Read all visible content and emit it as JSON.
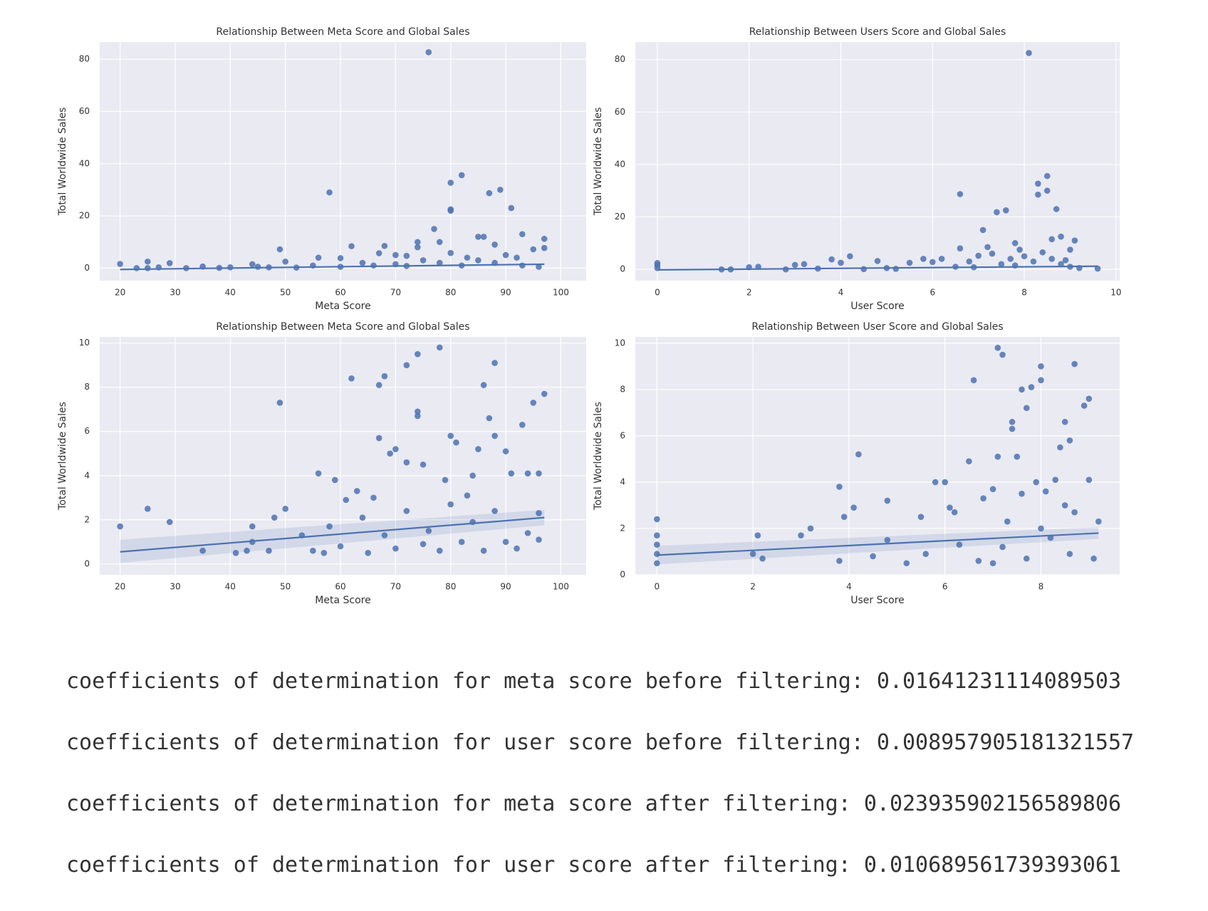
{
  "chart_data": [
    {
      "type": "scatter",
      "title": "Relationship Between Meta Score and Global Sales",
      "x_label": "Meta Score",
      "y_label": "Total Worldwide Sales",
      "color": "#4c72b0",
      "grid": true,
      "xlim": [
        16.3,
        104.6
      ],
      "ylim": [
        -4.8,
        86.6
      ],
      "xticks": [
        20,
        30,
        40,
        50,
        60,
        70,
        80,
        90,
        100
      ],
      "yticks": [
        0,
        20,
        40,
        60,
        80
      ],
      "x": [
        76,
        80,
        82,
        58,
        87,
        89,
        80,
        80,
        91,
        93,
        85,
        86,
        77,
        78,
        74,
        74,
        49,
        62,
        68,
        97,
        97,
        95,
        20,
        23,
        25,
        25,
        27,
        29,
        32,
        35,
        40,
        44,
        45,
        50,
        55,
        56,
        60,
        64,
        67,
        70,
        72,
        75,
        80,
        83,
        88,
        90,
        92,
        66,
        70,
        72,
        78,
        82,
        85,
        88,
        93,
        96,
        60,
        52,
        47,
        38
      ],
      "values": [
        82.7,
        32.7,
        35.6,
        29,
        28.7,
        30,
        22.5,
        22,
        23,
        13,
        12,
        12,
        15,
        10,
        10,
        8,
        7.2,
        8.4,
        8.5,
        11.2,
        7.7,
        7.2,
        1.6,
        0,
        2.5,
        0,
        0.3,
        1.9,
        0,
        0.6,
        0.3,
        1.5,
        0.5,
        2.5,
        1,
        4,
        3.8,
        2,
        5.7,
        5,
        4.7,
        3,
        5.8,
        4,
        9,
        5,
        4,
        1,
        1.5,
        0.8,
        2,
        1,
        3,
        2,
        1,
        0.5,
        0.5,
        0.2,
        0.3,
        0.1
      ],
      "trend": {
        "x": [
          20,
          97
        ],
        "values": [
          -0.5,
          1.5
        ]
      }
    },
    {
      "type": "scatter",
      "title": "Relationship Between Users Score and Global Sales",
      "x_label": "User Score",
      "y_label": "Total Worldwide Sales",
      "color": "#4c72b0",
      "grid": true,
      "xlim": [
        -0.48,
        10.08
      ],
      "ylim": [
        -4.3,
        86.7
      ],
      "xticks": [
        0,
        2,
        4,
        6,
        8,
        10
      ],
      "yticks": [
        0,
        20,
        40,
        60,
        80
      ],
      "x": [
        8.1,
        8.5,
        8.3,
        8.5,
        8.3,
        6.6,
        7.6,
        7.4,
        8.7,
        7.1,
        8.8,
        8.6,
        9.1,
        7.8,
        6.6,
        7.2,
        7.9,
        9.0,
        4.2,
        3.8,
        4.0,
        0,
        0,
        0,
        1.4,
        1.6,
        2.0,
        2.2,
        2.8,
        3.0,
        3.2,
        3.5,
        4.8,
        5.0,
        5.5,
        5.8,
        6.0,
        6.2,
        6.5,
        6.8,
        7.0,
        7.3,
        7.5,
        7.7,
        8.0,
        8.2,
        8.4,
        8.6,
        8.8,
        9.0,
        9.2,
        9.6,
        5.2,
        4.5,
        6.9,
        7.8,
        8.9
      ],
      "values": [
        82.5,
        35.6,
        32.7,
        30,
        28.5,
        28.7,
        22.5,
        21.8,
        23,
        15,
        12.5,
        11.5,
        11,
        10,
        8,
        8.5,
        7.5,
        7.5,
        5,
        3.8,
        2.5,
        2.4,
        1.6,
        0.5,
        0,
        0,
        0.8,
        1,
        0,
        1.7,
        2,
        0.3,
        3.2,
        0.5,
        2.5,
        4,
        2.8,
        4,
        1,
        3,
        5.2,
        6,
        2,
        4,
        5,
        3,
        6.5,
        4,
        2,
        1,
        0.5,
        0.3,
        0.2,
        0.1,
        0.8,
        1.5,
        3.5
      ],
      "trend": {
        "x": [
          0,
          9.6
        ],
        "values": [
          -0.2,
          1.2
        ]
      }
    },
    {
      "type": "scatter",
      "title": "Relationship Between Meta Score and Global Sales",
      "x_label": "Meta Score",
      "y_label": "Total Worldwide Sales",
      "color": "#4c72b0",
      "grid": true,
      "xlim": [
        16.3,
        104.6
      ],
      "ylim": [
        -0.49,
        10.28
      ],
      "xticks": [
        20,
        30,
        40,
        50,
        60,
        70,
        80,
        90,
        100
      ],
      "yticks": [
        0,
        2,
        4,
        6,
        8,
        10
      ],
      "x": [
        78,
        74,
        72,
        88,
        62,
        68,
        67,
        86,
        97,
        49,
        95,
        74,
        74,
        87,
        93,
        20,
        25,
        29,
        35,
        41,
        43,
        44,
        44,
        48,
        50,
        47,
        53,
        56,
        59,
        61,
        63,
        66,
        67,
        69,
        70,
        72,
        75,
        80,
        81,
        84,
        85,
        88,
        90,
        91,
        94,
        96,
        96,
        96,
        55,
        58,
        60,
        64,
        68,
        70,
        72,
        76,
        78,
        80,
        82,
        84,
        86,
        88,
        90,
        92,
        94,
        57,
        65,
        75,
        83,
        79
      ],
      "values": [
        9.8,
        9.5,
        9,
        9.1,
        8.4,
        8.5,
        8.1,
        8.1,
        7.7,
        7.3,
        7.3,
        6.9,
        6.7,
        6.6,
        6.3,
        1.7,
        2.5,
        1.9,
        0.6,
        0.5,
        0.6,
        1.7,
        1,
        2.1,
        2.5,
        0.6,
        1.3,
        4.1,
        3.8,
        2.9,
        3.3,
        3,
        5.7,
        5,
        5.2,
        4.6,
        4.5,
        5.8,
        5.5,
        4,
        5.2,
        5.8,
        5.1,
        4.1,
        4.1,
        4.1,
        2.3,
        1.1,
        0.6,
        1.7,
        0.8,
        2.1,
        1.3,
        0.7,
        2.4,
        1.5,
        0.6,
        2.7,
        1,
        1.9,
        0.6,
        2.4,
        1,
        0.7,
        1.4,
        0.5,
        0.5,
        0.9,
        3.1,
        3.8
      ],
      "trend": {
        "x": [
          20,
          97
        ],
        "values": [
          0.55,
          2.1
        ],
        "ci_lower": [
          0.05,
          1.75
        ],
        "ci_upper": [
          1.1,
          2.45
        ]
      }
    },
    {
      "type": "scatter",
      "title": "Relationship Between User Score and Global Sales",
      "x_label": "User Score",
      "y_label": "Total Worldwide Sales",
      "color": "#4c72b0",
      "grid": true,
      "xlim": [
        -0.45,
        9.64
      ],
      "ylim": [
        0,
        10.27
      ],
      "xticks": [
        0,
        2,
        4,
        6,
        8
      ],
      "yticks": [
        0,
        2,
        4,
        6,
        8,
        10
      ],
      "x": [
        7.1,
        7.2,
        8.0,
        8.7,
        6.6,
        7.6,
        7.8,
        9.0,
        8.9,
        7.7,
        8.0,
        7.4,
        8.5,
        7.4,
        8.6,
        8.4,
        4.2,
        7.1,
        7.5,
        3.8,
        4.1,
        3.9,
        4.8,
        0,
        0,
        0,
        0,
        0,
        2.0,
        2.1,
        2.2,
        3.0,
        3.2,
        3.8,
        4.5,
        4.8,
        5.5,
        5.8,
        6.0,
        6.1,
        6.2,
        6.5,
        6.8,
        7.0,
        7.3,
        7.6,
        7.9,
        8.1,
        8.3,
        8.5,
        8.7,
        9.0,
        9.2,
        5.2,
        5.6,
        6.3,
        6.7,
        7.2,
        7.7,
        8.2,
        8.6,
        9.1,
        8.0,
        7.0
      ],
      "values": [
        9.8,
        9.5,
        9.0,
        9.1,
        8.4,
        8.0,
        8.1,
        7.6,
        7.3,
        7.2,
        8.4,
        6.6,
        6.6,
        6.3,
        5.8,
        5.5,
        5.2,
        5.1,
        5.1,
        3.8,
        2.9,
        2.5,
        3.2,
        2.4,
        1.7,
        1.3,
        0.9,
        0.5,
        0.9,
        1.7,
        0.7,
        1.7,
        2.0,
        0.6,
        0.8,
        1.5,
        2.5,
        4.0,
        4.0,
        2.9,
        2.7,
        4.9,
        3.3,
        3.7,
        2.3,
        3.5,
        4.0,
        3.6,
        4.1,
        3.0,
        2.7,
        4.1,
        2.3,
        0.5,
        0.9,
        1.3,
        0.6,
        1.2,
        0.7,
        1.6,
        0.9,
        0.7,
        2.0,
        0.5
      ],
      "trend": {
        "x": [
          0,
          9.2
        ],
        "values": [
          0.85,
          1.8
        ],
        "ci_lower": [
          0.45,
          1.55
        ],
        "ci_upper": [
          1.25,
          2.05
        ]
      }
    }
  ],
  "output": [
    "coefficients of determination for meta score before filtering: 0.01641231114089503",
    "coefficients of determination for user score before filtering: 0.008957905181321557",
    "coefficients of determination for meta score after filtering: 0.023935902156589806",
    "coefficients of determination for user score after filtering: 0.010689561739393061"
  ]
}
